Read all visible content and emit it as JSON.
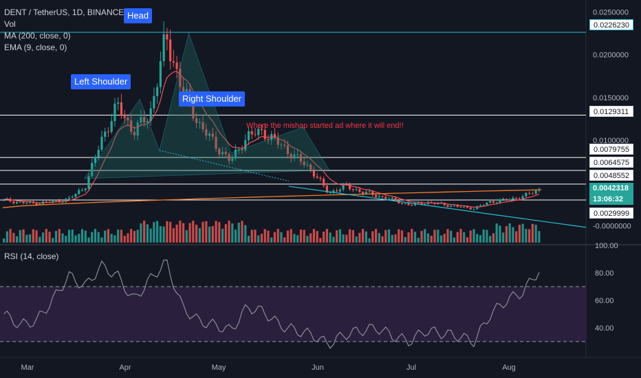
{
  "legend": {
    "symbol": "DENT / TetherUS, 1D, BINANCE",
    "vol": "Vol",
    "ma": "MA (200, close, 0)",
    "ema": "EMA (9, close, 0)"
  },
  "rsi_legend": "RSI (14, close)",
  "annotations": {
    "head": "Head",
    "left_shoulder": "Left Shoulder",
    "right_shoulder": "Right Shoulder",
    "note": "Where the mishap started ad where it will end!!"
  },
  "price_axis": [
    "0.0250000",
    "0.0200000",
    "0.0150000",
    "0.0100000",
    "-0.0000000"
  ],
  "price_tags": {
    "cyan_top": "0.0226230",
    "level_1": "0.0129311",
    "level_2": "0.0079755",
    "level_3": "0.0064575",
    "level_4": "0.0048552",
    "current": "0.0042318",
    "countdown": "13:06:32",
    "level_5": "0.0029999"
  },
  "rsi_axis": [
    "100.00",
    "80.00",
    "60.00",
    "40.00"
  ],
  "time_axis": [
    "Mar",
    "Apr",
    "May",
    "Jun",
    "Jul",
    "Aug"
  ],
  "colors": {
    "background": "#131722",
    "up": "#26a69a",
    "down": "#ef5350",
    "ma200": "#f57c28",
    "ema9": "#ef5350",
    "trendline": "#22c1d6",
    "pattern_fill": "#1f6f64",
    "rsi_band": "#2a1f3d",
    "rsi_line": "#8a8d96"
  },
  "chart_data": {
    "type": "candlestick",
    "title": "DENT / TetherUS, 1D, BINANCE",
    "y_scale": "linear",
    "ylim": [
      -0.0003,
      0.026
    ],
    "horizontal_levels": [
      0.022623,
      0.0129311,
      0.0079755,
      0.0064575,
      0.0048552,
      0.0029999
    ],
    "months": [
      "Mar",
      "Apr",
      "May",
      "Jun",
      "Jul",
      "Aug"
    ],
    "price_series": {
      "approx_close_by_week": [
        0.003,
        0.0027,
        0.0026,
        0.0028,
        0.0031,
        0.0045,
        0.01,
        0.014,
        0.011,
        0.013,
        0.022,
        0.016,
        0.012,
        0.0095,
        0.0075,
        0.0105,
        0.011,
        0.0095,
        0.008,
        0.0065,
        0.0038,
        0.0046,
        0.004,
        0.0035,
        0.003,
        0.0024,
        0.0027,
        0.0025,
        0.0022,
        0.002,
        0.0028,
        0.003,
        0.0034,
        0.0042
      ]
    },
    "rsi": {
      "levels": [
        30,
        70
      ],
      "approx_values_by_week": [
        50,
        42,
        45,
        60,
        78,
        70,
        85,
        78,
        60,
        75,
        88,
        55,
        45,
        42,
        38,
        55,
        52,
        42,
        38,
        35,
        28,
        35,
        38,
        40,
        34,
        30,
        38,
        36,
        34,
        30,
        50,
        60,
        66,
        82
      ]
    }
  }
}
